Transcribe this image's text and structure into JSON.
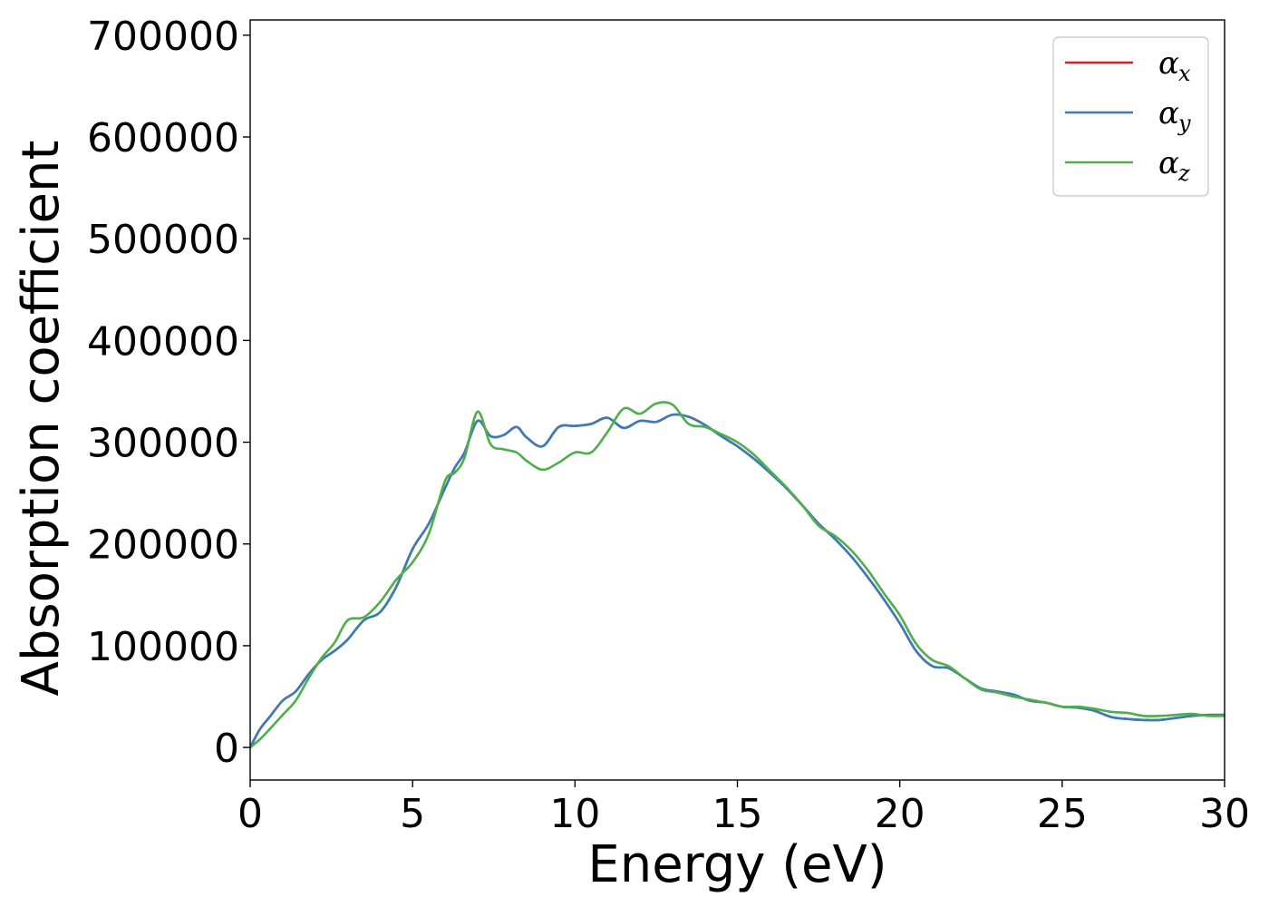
{
  "chart_data": {
    "type": "line",
    "title": "",
    "xlabel": "Energy (eV)",
    "ylabel": "Absorption coefficient",
    "xlim": [
      0,
      30
    ],
    "ylim": [
      -32000,
      715000
    ],
    "xticks": [
      0,
      5,
      10,
      15,
      20,
      25,
      30
    ],
    "yticks": [
      0,
      100000,
      200000,
      300000,
      400000,
      500000,
      600000,
      700000
    ],
    "grid": false,
    "legend_position": "top-right",
    "series": [
      {
        "name": "α_x",
        "symbol": "α",
        "subscript": "x",
        "color": "#e41a1c",
        "x": [
          0,
          0.3,
          0.6,
          1,
          1.4,
          1.8,
          2.2,
          2.6,
          3,
          3.5,
          4,
          4.5,
          5,
          5.5,
          6,
          6.3,
          6.6,
          7,
          7.4,
          7.8,
          8.2,
          8.5,
          9,
          9.5,
          10,
          10.5,
          11,
          11.5,
          12,
          12.5,
          13,
          13.5,
          14,
          14.5,
          15,
          15.5,
          16,
          16.5,
          17,
          17.5,
          18,
          18.5,
          19,
          19.5,
          20,
          20.5,
          21,
          21.5,
          22,
          22.5,
          23,
          23.5,
          24,
          24.5,
          25,
          25.5,
          26,
          26.5,
          27,
          27.5,
          28,
          28.5,
          29,
          29.5,
          30
        ],
        "y": [
          0,
          18000,
          30000,
          46000,
          55000,
          72000,
          86000,
          95000,
          106000,
          125000,
          133000,
          158000,
          195000,
          220000,
          255000,
          275000,
          290000,
          321000,
          306000,
          307000,
          315000,
          305000,
          296000,
          315000,
          316000,
          318000,
          324000,
          314000,
          321000,
          320000,
          327000,
          325000,
          317000,
          306000,
          296000,
          284000,
          270000,
          255000,
          238000,
          220000,
          205000,
          188000,
          168000,
          146000,
          122000,
          95000,
          80000,
          78000,
          68000,
          58000,
          55000,
          52000,
          46000,
          44000,
          40000,
          39000,
          36000,
          30000,
          28000,
          27000,
          27000,
          29000,
          31000,
          32000,
          32000
        ]
      },
      {
        "name": "α_y",
        "symbol": "α",
        "subscript": "y",
        "color": "#377eb8",
        "x": [
          0,
          0.3,
          0.6,
          1,
          1.4,
          1.8,
          2.2,
          2.6,
          3,
          3.5,
          4,
          4.5,
          5,
          5.5,
          6,
          6.3,
          6.6,
          7,
          7.4,
          7.8,
          8.2,
          8.5,
          9,
          9.5,
          10,
          10.5,
          11,
          11.5,
          12,
          12.5,
          13,
          13.5,
          14,
          14.5,
          15,
          15.5,
          16,
          16.5,
          17,
          17.5,
          18,
          18.5,
          19,
          19.5,
          20,
          20.5,
          21,
          21.5,
          22,
          22.5,
          23,
          23.5,
          24,
          24.5,
          25,
          25.5,
          26,
          26.5,
          27,
          27.5,
          28,
          28.5,
          29,
          29.5,
          30
        ],
        "y": [
          0,
          18000,
          30000,
          46000,
          55000,
          72000,
          86000,
          95000,
          106000,
          125000,
          133000,
          158000,
          195000,
          220000,
          255000,
          275000,
          290000,
          321000,
          306000,
          307000,
          315000,
          305000,
          296000,
          315000,
          316000,
          318000,
          324000,
          314000,
          321000,
          320000,
          327000,
          325000,
          317000,
          306000,
          296000,
          284000,
          270000,
          255000,
          238000,
          220000,
          205000,
          188000,
          168000,
          146000,
          122000,
          95000,
          80000,
          78000,
          68000,
          58000,
          55000,
          52000,
          46000,
          44000,
          40000,
          39000,
          36000,
          30000,
          28000,
          27000,
          27000,
          29000,
          31000,
          32000,
          32000
        ]
      },
      {
        "name": "α_z",
        "symbol": "α",
        "subscript": "z",
        "color": "#4daf4a",
        "x": [
          0,
          0.3,
          0.6,
          1,
          1.4,
          1.8,
          2.2,
          2.6,
          3,
          3.5,
          4,
          4.5,
          5,
          5.5,
          6,
          6.3,
          6.6,
          7,
          7.4,
          7.8,
          8.2,
          8.5,
          9,
          9.5,
          10,
          10.5,
          11,
          11.5,
          12,
          12.5,
          13,
          13.5,
          14,
          14.5,
          15,
          15.5,
          16,
          16.5,
          17,
          17.5,
          18,
          18.5,
          19,
          19.5,
          20,
          20.5,
          21,
          21.5,
          22,
          22.5,
          23,
          23.5,
          24,
          24.5,
          25,
          25.5,
          26,
          26.5,
          27,
          27.5,
          28,
          28.5,
          29,
          29.5,
          30
        ],
        "y": [
          0,
          8000,
          18000,
          32000,
          46000,
          68000,
          88000,
          103000,
          125000,
          128000,
          143000,
          165000,
          182000,
          210000,
          262000,
          270000,
          285000,
          330000,
          298000,
          293000,
          290000,
          282000,
          273000,
          280000,
          290000,
          290000,
          310000,
          333000,
          328000,
          338000,
          337000,
          318000,
          315000,
          308000,
          300000,
          288000,
          272000,
          256000,
          238000,
          218000,
          208000,
          194000,
          175000,
          152000,
          130000,
          102000,
          86000,
          80000,
          68000,
          57000,
          54000,
          50000,
          47000,
          44000,
          40000,
          40000,
          38000,
          35000,
          34000,
          31000,
          31000,
          32000,
          33000,
          31000,
          31000
        ]
      }
    ]
  }
}
